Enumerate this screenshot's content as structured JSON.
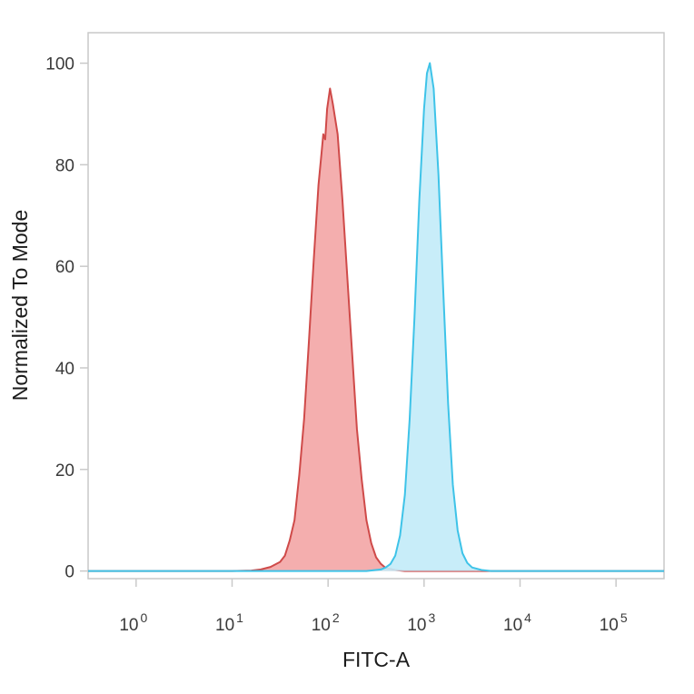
{
  "figure": {
    "background": "#ffffff"
  },
  "chart_data": {
    "type": "area",
    "chart_kind": "flow-cytometry-histogram",
    "title": "",
    "xlabel": "FITC-A",
    "ylabel": "Normalized To Mode",
    "x_scale": "log10",
    "xlim_log10": [
      -0.5,
      5.5
    ],
    "ylim": [
      -1.5,
      106
    ],
    "x_tick_base": "10",
    "x_ticks_log10": [
      0,
      1,
      2,
      3,
      4,
      5
    ],
    "y_ticks": [
      0,
      20,
      40,
      60,
      80,
      100
    ],
    "grid": false,
    "legend": "none",
    "frame_color": "#c9c9c9",
    "tick_color": "#c9c9c9",
    "text_color": "#3a3a3a",
    "series": [
      {
        "name": "red-population",
        "stroke": "#cf4a49",
        "fill": "#f2a0a0",
        "fill_opacity": 0.85,
        "peak_log10_x": 2.0,
        "peak_y": 95,
        "points": [
          [
            -0.5,
            0
          ],
          [
            1.0,
            0
          ],
          [
            1.2,
            0.1
          ],
          [
            1.3,
            0.3
          ],
          [
            1.4,
            0.8
          ],
          [
            1.5,
            1.8
          ],
          [
            1.55,
            3
          ],
          [
            1.6,
            6
          ],
          [
            1.65,
            10
          ],
          [
            1.7,
            19
          ],
          [
            1.75,
            30
          ],
          [
            1.8,
            45
          ],
          [
            1.85,
            61
          ],
          [
            1.9,
            76
          ],
          [
            1.93,
            82
          ],
          [
            1.95,
            86
          ],
          [
            1.97,
            85
          ],
          [
            1.99,
            91
          ],
          [
            2.02,
            95
          ],
          [
            2.05,
            92
          ],
          [
            2.1,
            86
          ],
          [
            2.15,
            73
          ],
          [
            2.2,
            58
          ],
          [
            2.25,
            43
          ],
          [
            2.3,
            28
          ],
          [
            2.35,
            18
          ],
          [
            2.4,
            10
          ],
          [
            2.45,
            5.5
          ],
          [
            2.5,
            2.7
          ],
          [
            2.55,
            1.4
          ],
          [
            2.6,
            0.6
          ],
          [
            2.7,
            0.2
          ],
          [
            2.8,
            0
          ],
          [
            5.5,
            0
          ]
        ]
      },
      {
        "name": "cyan-population",
        "stroke": "#3ec3e8",
        "fill": "#c2ebf8",
        "fill_opacity": 0.9,
        "peak_log10_x": 3.06,
        "peak_y": 100,
        "points": [
          [
            -0.5,
            0
          ],
          [
            2.4,
            0
          ],
          [
            2.55,
            0.3
          ],
          [
            2.6,
            0.7
          ],
          [
            2.65,
            1.4
          ],
          [
            2.7,
            3
          ],
          [
            2.75,
            7
          ],
          [
            2.8,
            15
          ],
          [
            2.85,
            30
          ],
          [
            2.9,
            50
          ],
          [
            2.95,
            73
          ],
          [
            3.0,
            91
          ],
          [
            3.03,
            98
          ],
          [
            3.06,
            100
          ],
          [
            3.1,
            95
          ],
          [
            3.15,
            78
          ],
          [
            3.2,
            55
          ],
          [
            3.25,
            33
          ],
          [
            3.3,
            17
          ],
          [
            3.35,
            8
          ],
          [
            3.4,
            3.5
          ],
          [
            3.45,
            1.6
          ],
          [
            3.5,
            0.7
          ],
          [
            3.6,
            0.2
          ],
          [
            3.7,
            0
          ],
          [
            5.5,
            0
          ]
        ]
      }
    ]
  }
}
